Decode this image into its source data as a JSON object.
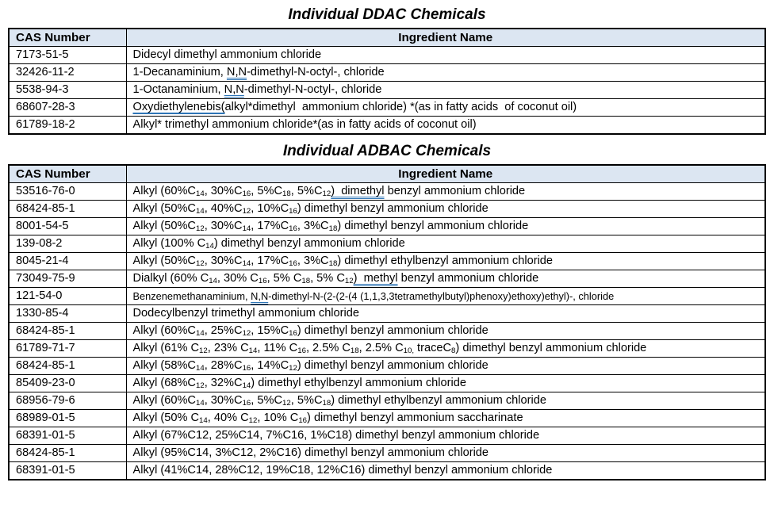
{
  "colors": {
    "header_fill": "#dce6f2",
    "border": "#000000",
    "grammar_underline_blue": "#2e75b6",
    "text": "#000000",
    "background": "#ffffff"
  },
  "tables": [
    {
      "title": "Individual DDAC Chemicals",
      "columns": [
        "CAS Number",
        "Ingredient Name"
      ],
      "rows": [
        {
          "cas": "7173-51-5",
          "ingredient": [
            "Didecyl dimethyl ammonium chloride"
          ]
        },
        {
          "cas": "32426-11-2",
          "ingredient": [
            "1-Decanaminium, ",
            {
              "t": "N,N",
              "ul": "double"
            },
            "-dimethyl-N-octyl-, chloride"
          ]
        },
        {
          "cas": "5538-94-3",
          "ingredient": [
            "1-Octanaminium, ",
            {
              "t": "N,N",
              "ul": "double"
            },
            "-dimethyl-N-octyl-, chloride"
          ]
        },
        {
          "cas": "68607-28-3",
          "ingredient": [
            {
              "t": "Oxydiethylenebis(",
              "ul": "single"
            },
            "alkyl*dimethyl  ammonium chloride) *(as in fatty acids  of coconut oil)"
          ]
        },
        {
          "cas": "61789-18-2",
          "ingredient": [
            "Alkyl* trimethyl ammonium chloride*(as in fatty acids of coconut oil)"
          ]
        }
      ]
    },
    {
      "title": "Individual ADBAC Chemicals",
      "columns": [
        "CAS Number",
        "Ingredient Name"
      ],
      "rows": [
        {
          "cas": "53516-76-0",
          "ingredient": [
            "Alkyl (60%C",
            {
              "t": "14",
              "sub": true
            },
            ", 30%C",
            {
              "t": "16",
              "sub": true
            },
            ", 5%C",
            {
              "t": "18",
              "sub": true
            },
            ", 5%C",
            {
              "t": "12",
              "sub": true
            },
            {
              "t": ")  dimethyl",
              "ul": "double"
            },
            " benzyl ammonium chloride"
          ]
        },
        {
          "cas": "68424-85-1",
          "ingredient": [
            "Alkyl (50%C",
            {
              "t": "14",
              "sub": true
            },
            ", 40%C",
            {
              "t": "12",
              "sub": true
            },
            ", 10%C",
            {
              "t": "16",
              "sub": true
            },
            ") dimethyl benzyl ammonium chloride"
          ]
        },
        {
          "cas": "8001-54-5",
          "ingredient": [
            "Alkyl (50%C",
            {
              "t": "12",
              "sub": true
            },
            ", 30%C",
            {
              "t": "14",
              "sub": true
            },
            ", 17%C",
            {
              "t": "16",
              "sub": true
            },
            ", 3%C",
            {
              "t": "18",
              "sub": true
            },
            ") dimethyl benzyl ammonium chloride"
          ]
        },
        {
          "cas": "139-08-2",
          "ingredient": [
            "Alkyl (100% C",
            {
              "t": "14",
              "sub": true
            },
            ") dimethyl benzyl ammonium chloride"
          ]
        },
        {
          "cas": "8045-21-4",
          "ingredient": [
            "Alkyl (50%C",
            {
              "t": "12",
              "sub": true
            },
            ", 30%C",
            {
              "t": "14",
              "sub": true
            },
            ", 17%C",
            {
              "t": "16",
              "sub": true
            },
            ", 3%C",
            {
              "t": "18",
              "sub": true
            },
            ") dimethyl ethylbenzyl ammonium chloride"
          ]
        },
        {
          "cas": "73049-75-9",
          "ingredient": [
            "Dialkyl (60% C",
            {
              "t": "14",
              "sub": true
            },
            ", 30% C",
            {
              "t": "16",
              "sub": true
            },
            ", 5% C",
            {
              "t": "18",
              "sub": true
            },
            ", 5% C",
            {
              "t": "12",
              "sub": true
            },
            {
              "t": ")  methyl",
              "ul": "double"
            },
            " benzyl ammonium chloride"
          ]
        },
        {
          "cas": "121-54-0",
          "small": true,
          "ingredient": [
            "Benzenemethanaminium, ",
            {
              "t": "N,N",
              "ul": "double"
            },
            "-dimethyl-N-(2-(2-(4 (1,1,3,3tetramethylbutyl)phenoxy)ethoxy)ethyl)-, chloride"
          ]
        },
        {
          "cas": "1330-85-4",
          "ingredient": [
            "Dodecylbenzyl trimethyl ammonium chloride"
          ]
        },
        {
          "cas": "68424-85-1",
          "ingredient": [
            "Alkyl (60%C",
            {
              "t": "14",
              "sub": true
            },
            ", 25%C",
            {
              "t": "12",
              "sub": true
            },
            ", 15%C",
            {
              "t": "16",
              "sub": true
            },
            ") dimethyl benzyl ammonium chloride"
          ]
        },
        {
          "cas": "61789-71-7",
          "ingredient": [
            "Alkyl (61% C",
            {
              "t": "12",
              "sub": true
            },
            ", 23% C",
            {
              "t": "14",
              "sub": true
            },
            ", 11% C",
            {
              "t": "16",
              "sub": true
            },
            ", 2.5% C",
            {
              "t": "18",
              "sub": true
            },
            ", 2.5% C",
            {
              "t": "10,",
              "sub": true
            },
            " traceC",
            {
              "t": "8",
              "sub": true
            },
            ") dimethyl benzyl ammonium chloride"
          ]
        },
        {
          "cas": "68424-85-1",
          "ingredient": [
            "Alkyl (58%C",
            {
              "t": "14",
              "sub": true
            },
            ", 28%C",
            {
              "t": "16",
              "sub": true
            },
            ", 14%C",
            {
              "t": "12",
              "sub": true
            },
            ") dimethyl benzyl ammonium chloride"
          ]
        },
        {
          "cas": "85409-23-0",
          "ingredient": [
            "Alkyl (68%C",
            {
              "t": "12",
              "sub": true
            },
            ", 32%C",
            {
              "t": "14",
              "sub": true
            },
            ") dimethyl ethylbenzyl ammonium chloride"
          ]
        },
        {
          "cas": "68956-79-6",
          "ingredient": [
            "Alkyl (60%C",
            {
              "t": "14",
              "sub": true
            },
            ", 30%C",
            {
              "t": "16",
              "sub": true
            },
            ", 5%C",
            {
              "t": "12",
              "sub": true
            },
            ", 5%C",
            {
              "t": "18",
              "sub": true
            },
            ") dimethyl ethylbenzyl ammonium chloride"
          ]
        },
        {
          "cas": "68989-01-5",
          "ingredient": [
            "Alkyl (50% C",
            {
              "t": "14",
              "sub": true
            },
            ", 40% C",
            {
              "t": "12",
              "sub": true
            },
            ", 10% C",
            {
              "t": "16",
              "sub": true
            },
            ") dimethyl benzyl ammonium saccharinate"
          ]
        },
        {
          "cas": "68391-01-5",
          "ingredient": [
            "Alkyl (67%C12, 25%C14, 7%C16, 1%C18) dimethyl benzyl ammonium chloride"
          ]
        },
        {
          "cas": "68424-85-1",
          "ingredient": [
            "Alkyl (95%C14, 3%C12, 2%C16) dimethyl benzyl ammonium chloride"
          ]
        },
        {
          "cas": "68391-01-5",
          "ingredient": [
            "Alkyl (41%C14, 28%C12, 19%C18, 12%C16) dimethyl benzyl ammonium chloride"
          ]
        }
      ]
    }
  ]
}
